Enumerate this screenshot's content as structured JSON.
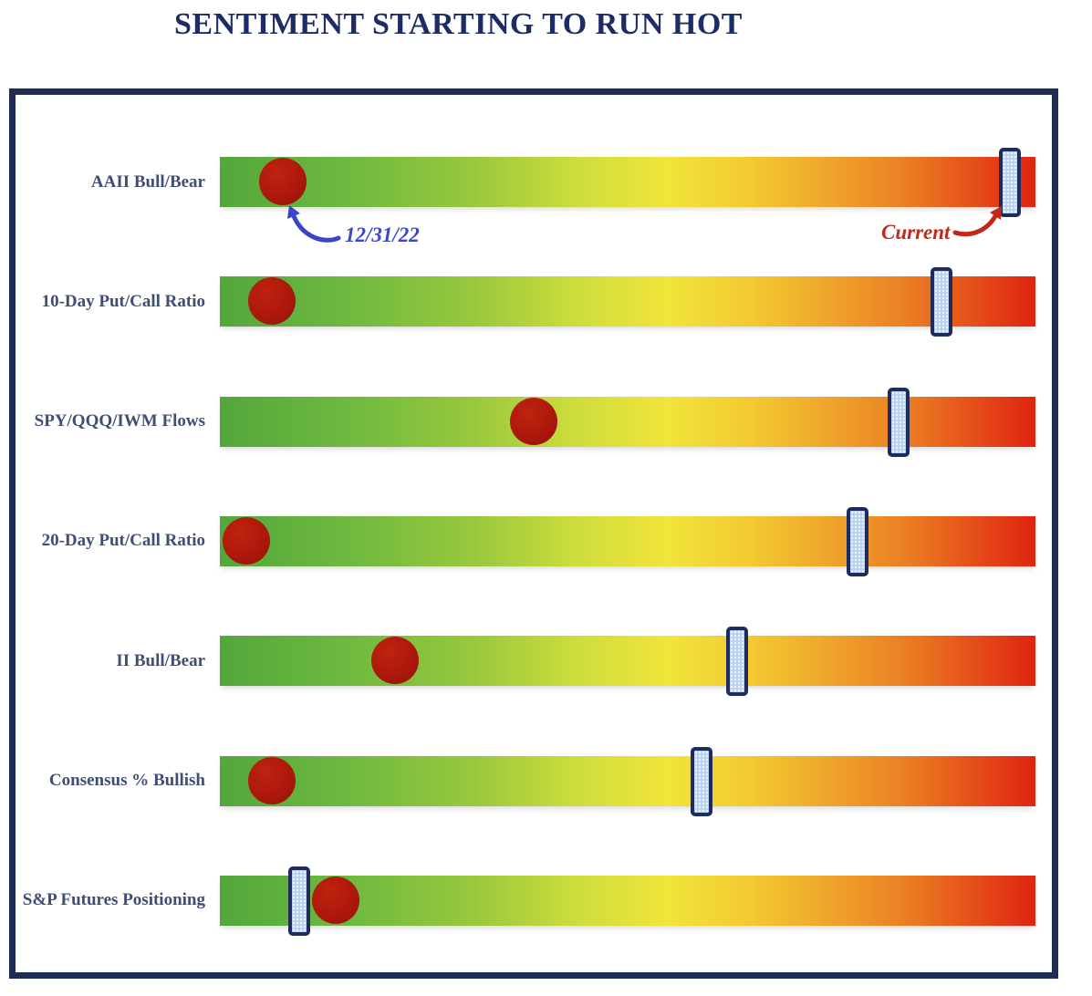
{
  "title": "SENTIMENT STARTING TO RUN HOT",
  "annotations": {
    "dot_label": "12/31/22",
    "marker_label": "Current"
  },
  "colors": {
    "title": "#1d2b66",
    "label": "#414e74",
    "frame": "#1f2c55",
    "dot": "#ad180c",
    "dot_highlight": "#c0220f",
    "dot_shadow": "#8f130a",
    "marker_fill": "#b7d0ee",
    "marker_border": "#1e2b5c",
    "annotation_blue": "#3a46c8",
    "annotation_red": "#c3291b",
    "gradient_stops": [
      "#53a73b 0%",
      "#6fb93f 16%",
      "#9cc93d 32%",
      "#cfdd3c 44%",
      "#f2e43a 55%",
      "#f3c931 65%",
      "#efa42b 75%",
      "#ea7a22 85%",
      "#e44517 94%",
      "#df2410 100%"
    ]
  },
  "chart_data": {
    "type": "bar",
    "subtype": "horizontal-sentiment-gauge",
    "title": "SENTIMENT STARTING TO RUN HOT",
    "categories": [
      "AAII Bull/Bear",
      "10-Day Put/Call Ratio",
      "SPY/QQQ/IWM Flows",
      "20-Day Put/Call Ratio",
      "II Bull/Bear",
      "Consensus % Bullish",
      "S&P Futures Positioning"
    ],
    "series": [
      {
        "name": "12/31/22",
        "marker": "red-dot",
        "values_pct": [
          7.7,
          6.4,
          38.5,
          3.2,
          21.5,
          6.4,
          14.2
        ]
      },
      {
        "name": "Current",
        "marker": "light-blue-hatched-slider",
        "values_pct": [
          96.9,
          88.5,
          83.2,
          78.2,
          63.4,
          59.1,
          9.7
        ]
      }
    ],
    "xlim": [
      0,
      100
    ],
    "scale_description": "each row is a green-to-red gradient gauge (cool/bearish at left, hot/bullish-extreme at right); positions expressed as % along the gauge",
    "legend_position": "annotated arrows on first row",
    "grid": false
  }
}
